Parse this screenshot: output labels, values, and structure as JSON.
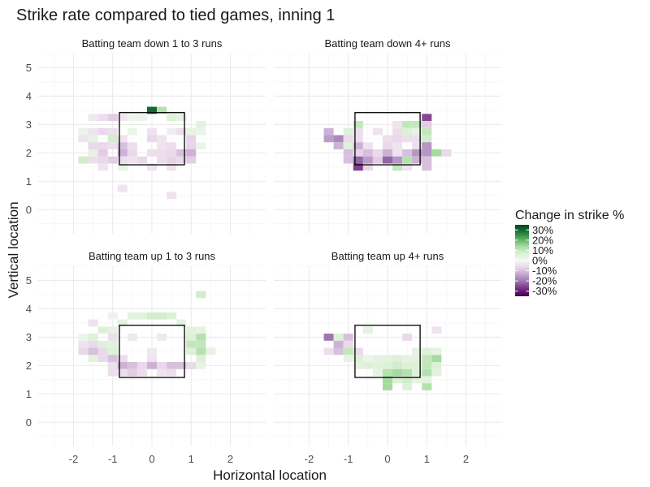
{
  "chart_data": {
    "type": "heatmap",
    "title": "Strike rate compared to tied games, inning 1",
    "xlabel": "Horizontal location",
    "ylabel": "Vertical location",
    "xlim": [
      -2.9,
      2.9
    ],
    "ylim": [
      -0.85,
      5.5
    ],
    "x_ticks": [
      -2,
      -1,
      0,
      1,
      2
    ],
    "y_ticks": [
      0,
      1,
      2,
      3,
      4,
      5
    ],
    "grid": true,
    "strike_zone": {
      "x": [
        -0.83,
        0.83
      ],
      "y": [
        1.58,
        3.42
      ]
    },
    "bin": {
      "width": 0.25,
      "height": 0.25
    },
    "legend": {
      "title": "Change in strike %",
      "position": "right",
      "ticks": [
        0.3,
        0.2,
        0.1,
        0.0,
        -0.1,
        -0.2,
        -0.3
      ],
      "labels": [
        "30%",
        "20%",
        "10%",
        "0%",
        "-10%",
        "-20%",
        "-30%"
      ],
      "range": [
        -0.35,
        0.35
      ],
      "colors": [
        "#40004b",
        "#762a83",
        "#9970ab",
        "#c2a5cf",
        "#e7d4e8",
        "#f7f7f7",
        "#d9f0d3",
        "#a6dba0",
        "#5aae61",
        "#1b7837",
        "#00441b"
      ]
    },
    "facets": [
      {
        "title": "Batting team down 1 to 3 runs",
        "cells": [
          [
            -1.5,
            3.25,
            -0.03
          ],
          [
            -1.25,
            3.25,
            -0.05
          ],
          [
            -1.0,
            3.25,
            -0.08
          ],
          [
            -0.75,
            3.25,
            -0.03
          ],
          [
            -0.5,
            3.25,
            0.02
          ],
          [
            -0.25,
            3.25,
            0.03
          ],
          [
            0.0,
            3.5,
            0.3
          ],
          [
            0.25,
            3.5,
            0.12
          ],
          [
            0.5,
            3.25,
            0.06
          ],
          [
            0.75,
            3.25,
            0.04
          ],
          [
            1.25,
            3.0,
            0.05
          ],
          [
            -1.75,
            2.75,
            0.03
          ],
          [
            -1.5,
            2.75,
            -0.04
          ],
          [
            -1.25,
            2.75,
            -0.06
          ],
          [
            -1.0,
            2.75,
            -0.05
          ],
          [
            -0.5,
            2.75,
            0.03
          ],
          [
            0.0,
            2.75,
            -0.04
          ],
          [
            0.5,
            2.75,
            -0.02
          ],
          [
            0.75,
            2.75,
            -0.05
          ],
          [
            1.0,
            2.75,
            0.04
          ],
          [
            1.25,
            2.75,
            0.03
          ],
          [
            -1.75,
            2.5,
            -0.04
          ],
          [
            -1.5,
            2.5,
            0.04
          ],
          [
            -1.0,
            2.5,
            0.08
          ],
          [
            -0.75,
            2.5,
            -0.04
          ],
          [
            0.0,
            2.5,
            -0.06
          ],
          [
            0.25,
            2.5,
            -0.04
          ],
          [
            1.0,
            2.5,
            -0.07
          ],
          [
            -1.5,
            2.25,
            -0.06
          ],
          [
            -1.25,
            2.25,
            -0.06
          ],
          [
            -1.0,
            2.25,
            -0.05
          ],
          [
            -0.75,
            2.25,
            -0.1
          ],
          [
            -0.5,
            2.25,
            -0.05
          ],
          [
            0.25,
            2.25,
            -0.04
          ],
          [
            0.5,
            2.25,
            -0.05
          ],
          [
            1.0,
            2.25,
            -0.07
          ],
          [
            1.25,
            2.25,
            0.03
          ],
          [
            -1.5,
            2.0,
            0.04
          ],
          [
            -1.25,
            2.0,
            -0.08
          ],
          [
            -0.75,
            2.0,
            -0.12
          ],
          [
            -0.5,
            2.0,
            -0.06
          ],
          [
            0.0,
            2.0,
            -0.05
          ],
          [
            0.25,
            2.0,
            -0.05
          ],
          [
            0.5,
            2.0,
            -0.06
          ],
          [
            0.75,
            2.0,
            -0.1
          ],
          [
            1.0,
            2.0,
            -0.12
          ],
          [
            -1.75,
            1.75,
            0.08
          ],
          [
            -1.5,
            1.75,
            -0.05
          ],
          [
            -1.25,
            1.75,
            -0.06
          ],
          [
            -1.0,
            1.75,
            -0.08
          ],
          [
            -0.75,
            1.75,
            -0.05
          ],
          [
            -0.5,
            1.75,
            -0.04
          ],
          [
            -0.25,
            1.75,
            -0.06
          ],
          [
            0.25,
            1.75,
            -0.05
          ],
          [
            0.5,
            1.75,
            -0.07
          ],
          [
            0.75,
            1.75,
            -0.06
          ],
          [
            1.0,
            1.75,
            -0.08
          ],
          [
            -1.25,
            1.5,
            -0.04
          ],
          [
            -0.75,
            1.5,
            0.03
          ],
          [
            0.0,
            1.5,
            -0.04
          ],
          [
            0.5,
            1.5,
            -0.04
          ],
          [
            -0.75,
            0.75,
            -0.04
          ],
          [
            0.5,
            0.5,
            -0.04
          ]
        ]
      },
      {
        "title": "Batting team down 4+ runs",
        "cells": [
          [
            1.0,
            3.25,
            -0.25
          ],
          [
            0.75,
            3.0,
            0.1
          ],
          [
            0.5,
            3.0,
            0.1
          ],
          [
            -0.75,
            3.0,
            0.1
          ],
          [
            0.25,
            3.0,
            -0.04
          ],
          [
            1.0,
            3.0,
            -0.08
          ],
          [
            -1.5,
            2.75,
            -0.12
          ],
          [
            -1.0,
            2.75,
            0.06
          ],
          [
            -0.75,
            2.75,
            -0.05
          ],
          [
            -0.25,
            2.75,
            -0.04
          ],
          [
            0.25,
            2.75,
            -0.05
          ],
          [
            0.5,
            2.75,
            0.06
          ],
          [
            0.75,
            2.75,
            0.04
          ],
          [
            1.0,
            2.75,
            0.1
          ],
          [
            -1.5,
            2.5,
            -0.15
          ],
          [
            -1.25,
            2.5,
            -0.18
          ],
          [
            -1.0,
            2.5,
            -0.06
          ],
          [
            -0.75,
            2.5,
            -0.05
          ],
          [
            0.0,
            2.5,
            -0.05
          ],
          [
            0.25,
            2.5,
            -0.06
          ],
          [
            0.5,
            2.5,
            -0.05
          ],
          [
            0.75,
            2.5,
            -0.05
          ],
          [
            1.0,
            2.5,
            0.08
          ],
          [
            -1.25,
            2.25,
            -0.12
          ],
          [
            -1.0,
            2.25,
            0.06
          ],
          [
            -0.75,
            2.25,
            -0.12
          ],
          [
            -0.5,
            2.25,
            -0.04
          ],
          [
            0.0,
            2.25,
            -0.06
          ],
          [
            0.25,
            2.25,
            -0.04
          ],
          [
            0.75,
            2.25,
            -0.05
          ],
          [
            1.0,
            2.25,
            -0.16
          ],
          [
            -1.0,
            2.0,
            -0.1
          ],
          [
            -0.75,
            2.0,
            -0.07
          ],
          [
            -0.5,
            2.0,
            -0.1
          ],
          [
            -0.25,
            2.0,
            -0.06
          ],
          [
            0.0,
            2.0,
            -0.12
          ],
          [
            0.25,
            2.0,
            -0.04
          ],
          [
            0.5,
            2.0,
            -0.1
          ],
          [
            0.75,
            2.0,
            -0.16
          ],
          [
            1.0,
            2.0,
            -0.16
          ],
          [
            1.25,
            2.0,
            0.14
          ],
          [
            1.5,
            2.0,
            -0.06
          ],
          [
            -1.0,
            1.75,
            -0.1
          ],
          [
            -0.75,
            1.75,
            -0.22
          ],
          [
            -0.5,
            1.75,
            -0.15
          ],
          [
            -0.25,
            1.75,
            -0.08
          ],
          [
            0.0,
            1.75,
            -0.22
          ],
          [
            0.25,
            1.75,
            -0.16
          ],
          [
            0.5,
            1.75,
            0.12
          ],
          [
            0.75,
            1.75,
            -0.12
          ],
          [
            1.0,
            1.75,
            -0.1
          ],
          [
            -0.75,
            1.5,
            -0.26
          ],
          [
            -0.5,
            1.5,
            -0.06
          ],
          [
            0.25,
            1.5,
            0.1
          ],
          [
            0.5,
            1.5,
            -0.04
          ],
          [
            1.0,
            1.5,
            -0.1
          ]
        ]
      },
      {
        "title": "Batting team up 1 to 3 runs",
        "cells": [
          [
            1.25,
            4.5,
            0.08
          ],
          [
            -0.5,
            3.75,
            0.05
          ],
          [
            -0.25,
            3.75,
            0.05
          ],
          [
            0.0,
            3.75,
            0.08
          ],
          [
            0.25,
            3.75,
            0.08
          ],
          [
            0.5,
            3.75,
            0.06
          ],
          [
            -1.0,
            3.75,
            0.03
          ],
          [
            -1.5,
            3.5,
            -0.04
          ],
          [
            -1.25,
            3.25,
            0.06
          ],
          [
            -1.0,
            3.25,
            0.04
          ],
          [
            -0.75,
            3.5,
            0.04
          ],
          [
            0.75,
            3.5,
            0.04
          ],
          [
            1.0,
            3.25,
            0.05
          ],
          [
            1.25,
            3.25,
            0.04
          ],
          [
            -1.5,
            3.0,
            0.06
          ],
          [
            -1.75,
            3.0,
            0.03
          ],
          [
            -1.0,
            3.0,
            -0.05
          ],
          [
            1.0,
            3.0,
            0.06
          ],
          [
            1.25,
            3.0,
            0.12
          ],
          [
            -0.5,
            3.0,
            -0.03
          ],
          [
            0.25,
            3.0,
            -0.03
          ],
          [
            -1.75,
            2.75,
            -0.04
          ],
          [
            -1.5,
            2.75,
            -0.06
          ],
          [
            -1.25,
            2.75,
            0.06
          ],
          [
            -1.0,
            2.75,
            0.05
          ],
          [
            1.0,
            2.75,
            0.1
          ],
          [
            1.25,
            2.75,
            0.1
          ],
          [
            -1.75,
            2.5,
            -0.06
          ],
          [
            -1.5,
            2.5,
            -0.1
          ],
          [
            -1.25,
            2.5,
            -0.06
          ],
          [
            -1.0,
            2.5,
            0.06
          ],
          [
            0.0,
            2.5,
            -0.03
          ],
          [
            1.0,
            2.5,
            0.06
          ],
          [
            1.25,
            2.5,
            0.12
          ],
          [
            1.5,
            2.5,
            0.04
          ],
          [
            -1.5,
            2.25,
            0.05
          ],
          [
            -1.25,
            2.25,
            -0.06
          ],
          [
            -1.0,
            2.25,
            -0.1
          ],
          [
            -0.75,
            2.25,
            -0.05
          ],
          [
            0.0,
            2.25,
            -0.04
          ],
          [
            1.25,
            2.25,
            0.06
          ],
          [
            -1.0,
            2.0,
            -0.05
          ],
          [
            -0.75,
            2.0,
            -0.12
          ],
          [
            -0.5,
            2.0,
            -0.1
          ],
          [
            -0.25,
            2.0,
            -0.06
          ],
          [
            0.0,
            2.0,
            -0.12
          ],
          [
            0.25,
            2.0,
            -0.06
          ],
          [
            0.5,
            2.0,
            -0.1
          ],
          [
            0.75,
            2.0,
            -0.1
          ],
          [
            1.0,
            2.0,
            -0.06
          ],
          [
            1.25,
            2.0,
            0.04
          ],
          [
            -1.0,
            1.75,
            -0.05
          ],
          [
            -0.75,
            1.75,
            -0.05
          ],
          [
            -0.5,
            1.75,
            -0.08
          ],
          [
            -0.25,
            1.75,
            -0.05
          ],
          [
            0.25,
            1.75,
            -0.04
          ],
          [
            0.5,
            1.75,
            -0.05
          ]
        ]
      },
      {
        "title": "Batting team up 4+ runs",
        "cells": [
          [
            1.25,
            3.25,
            -0.04
          ],
          [
            -0.5,
            3.25,
            0.04
          ],
          [
            0.5,
            3.0,
            -0.06
          ],
          [
            -1.5,
            3.0,
            -0.2
          ],
          [
            -1.25,
            3.0,
            0.06
          ],
          [
            -1.0,
            3.0,
            -0.1
          ],
          [
            -1.25,
            2.75,
            -0.12
          ],
          [
            -1.0,
            2.75,
            -0.06
          ],
          [
            -1.5,
            2.5,
            -0.05
          ],
          [
            -1.25,
            2.5,
            -0.1
          ],
          [
            -1.0,
            2.5,
            0.1
          ],
          [
            -0.75,
            2.5,
            -0.06
          ],
          [
            0.75,
            2.5,
            0.04
          ],
          [
            1.0,
            2.5,
            0.06
          ],
          [
            1.25,
            2.5,
            0.04
          ],
          [
            -1.0,
            2.25,
            0.04
          ],
          [
            -0.75,
            2.25,
            0.06
          ],
          [
            -0.5,
            2.25,
            0.03
          ],
          [
            -0.25,
            2.25,
            0.04
          ],
          [
            0.0,
            2.25,
            0.05
          ],
          [
            0.25,
            2.25,
            0.06
          ],
          [
            0.5,
            2.25,
            0.04
          ],
          [
            0.75,
            2.25,
            0.05
          ],
          [
            1.0,
            2.25,
            0.1
          ],
          [
            1.25,
            2.25,
            0.14
          ],
          [
            -0.75,
            2.0,
            0.05
          ],
          [
            -0.5,
            2.0,
            0.06
          ],
          [
            -0.25,
            2.0,
            0.05
          ],
          [
            0.0,
            2.0,
            0.06
          ],
          [
            0.25,
            2.0,
            0.08
          ],
          [
            0.5,
            2.0,
            0.06
          ],
          [
            0.75,
            2.0,
            0.06
          ],
          [
            1.0,
            2.0,
            0.1
          ],
          [
            1.25,
            2.0,
            0.06
          ],
          [
            -0.25,
            1.75,
            0.04
          ],
          [
            0.0,
            1.75,
            0.12
          ],
          [
            0.25,
            1.75,
            0.14
          ],
          [
            0.5,
            1.75,
            0.12
          ],
          [
            0.75,
            1.75,
            0.06
          ],
          [
            1.0,
            1.75,
            0.12
          ],
          [
            1.25,
            1.75,
            0.05
          ],
          [
            0.0,
            1.5,
            0.14
          ],
          [
            0.25,
            1.5,
            0.06
          ],
          [
            0.5,
            1.5,
            0.08
          ],
          [
            0.75,
            1.5,
            0.04
          ],
          [
            1.0,
            1.5,
            0.05
          ],
          [
            0.0,
            1.25,
            0.14
          ],
          [
            0.5,
            1.25,
            0.06
          ],
          [
            1.0,
            1.25,
            0.12
          ]
        ]
      }
    ]
  }
}
